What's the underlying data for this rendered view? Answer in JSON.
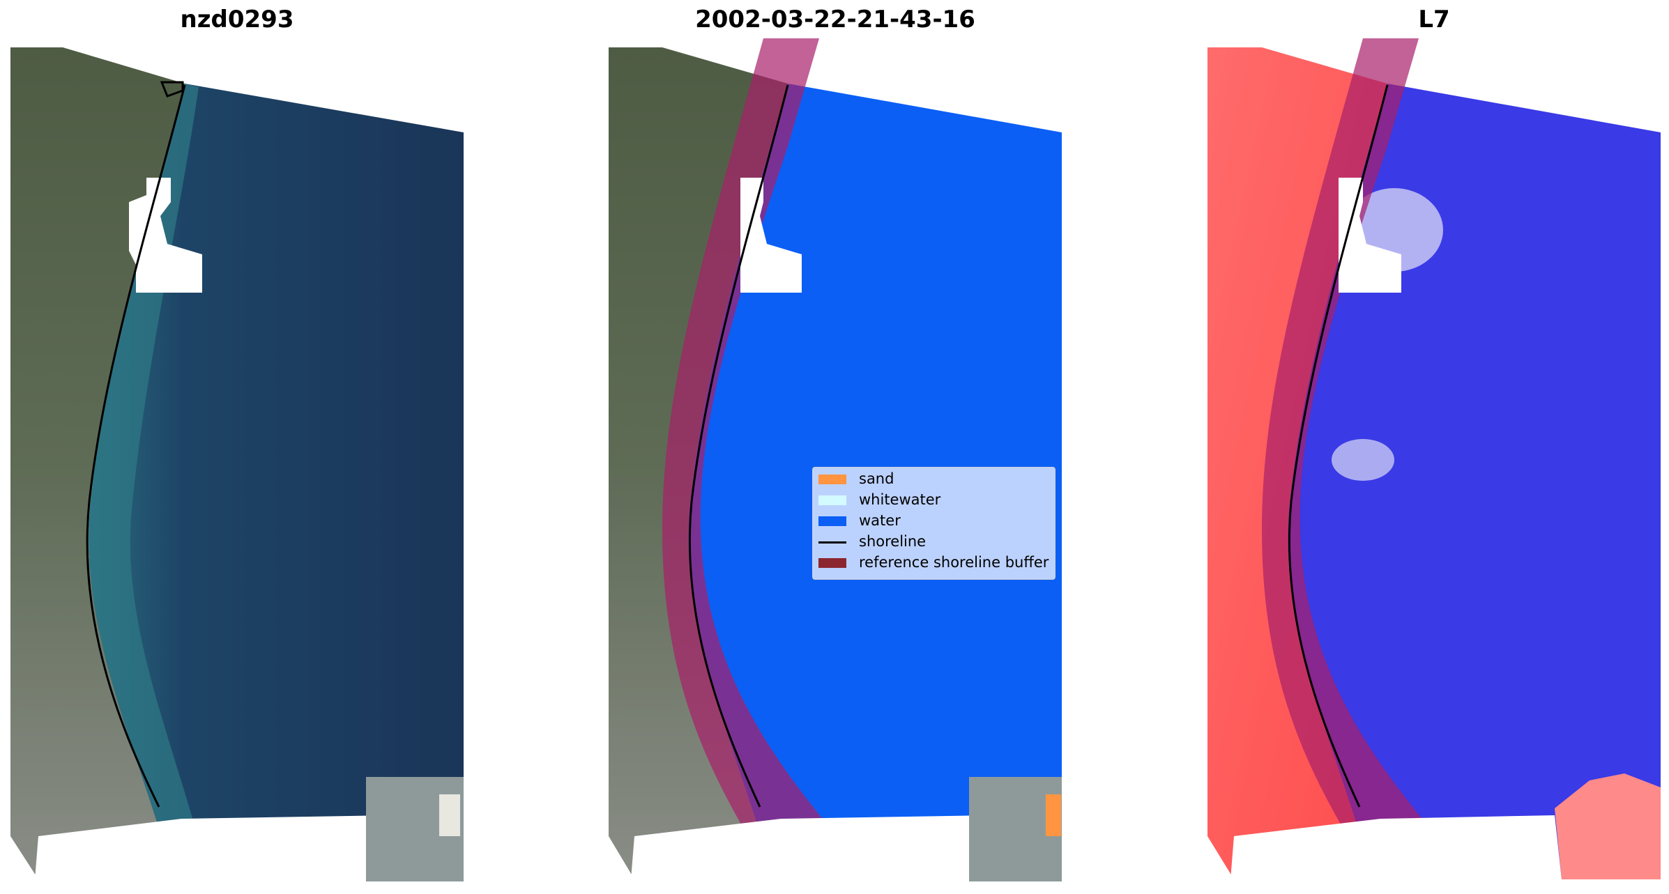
{
  "panels": [
    {
      "title": "nzd0293"
    },
    {
      "title": "2002-03-22-21-43-16"
    },
    {
      "title": "L7"
    }
  ],
  "legend": {
    "items": [
      {
        "label": "sand",
        "color": "#ff9540"
      },
      {
        "label": "whitewater",
        "color": "#d2faff"
      },
      {
        "label": "water",
        "color": "#0b5ff5"
      },
      {
        "label": "shoreline",
        "color": "#000000"
      },
      {
        "label": "reference shoreline buffer",
        "color": "#8b2630"
      }
    ]
  },
  "colors": {
    "land_rgb": "#5c6a55",
    "sea_rgb": "#1c3d5e",
    "water_class": "#0b5ff5",
    "buffer": "#a8206a",
    "index_land": "#ff5555",
    "index_water": "#3a3ae6"
  }
}
